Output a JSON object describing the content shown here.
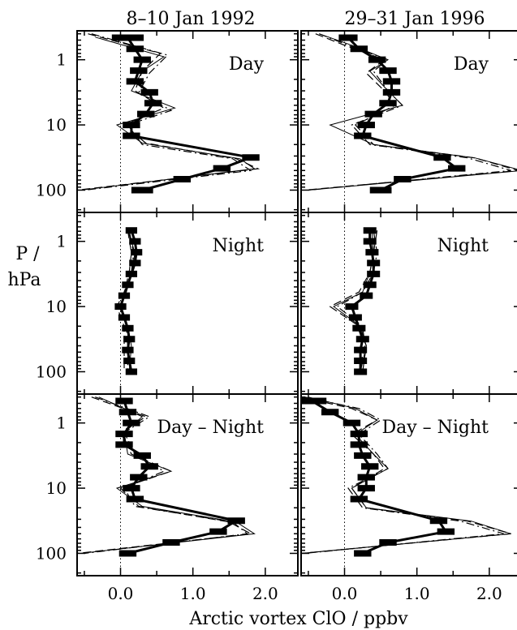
{
  "chart_data": {
    "type": "line",
    "layout": "3 rows x 2 columns of panels",
    "xlabel": "Arctic vortex ClO / ppbv",
    "ylabel": "P / hPa",
    "y_scale": "log",
    "y_reversed": true,
    "ylim": [
      220,
      0.36
    ],
    "xlim": [
      -0.6,
      2.45
    ],
    "xticks": [
      "0.0",
      "1.0",
      "2.0"
    ],
    "yticks": [
      "1",
      "10",
      "100"
    ],
    "columns": [
      "8–10 Jan 1992",
      "29–31 Jan 1996"
    ],
    "rows": [
      "Day",
      "Night",
      "Day – Night"
    ],
    "panels": [
      {
        "column": "8–10 Jan 1992",
        "row": "Day",
        "retrieval": {
          "pressure": [
            0.46,
            0.68,
            1.0,
            1.47,
            2.15,
            3.16,
            4.64,
            6.81,
            10,
            14.7,
            31.6,
            46.4,
            68.1,
            100
          ],
          "clo": [
            0.1,
            0.2,
            0.3,
            0.25,
            0.2,
            0.4,
            0.45,
            0.35,
            0.15,
            0.15,
            1.8,
            1.4,
            0.85,
            0.3
          ],
          "error": [
            0.22,
            0.12,
            0.12,
            0.12,
            0.12,
            0.12,
            0.12,
            0.12,
            0.12,
            0.12,
            0.12,
            0.12,
            0.12,
            0.15
          ]
        },
        "model_lines": [
          {
            "style": "dashed",
            "pressure": [
              0.4,
              0.8,
              1.5,
              3,
              5.5,
              10,
              19,
              33,
              47,
              100
            ],
            "clo": [
              -0.45,
              0.55,
              0.3,
              0.2,
              0.6,
              0.05,
              0.35,
              1.6,
              1.9,
              -0.6
            ]
          },
          {
            "style": "dash-dot",
            "pressure": [
              0.4,
              0.85,
              1.6,
              3.2,
              6,
              10,
              20,
              33,
              50,
              100
            ],
            "clo": [
              -0.4,
              0.65,
              0.4,
              0.25,
              0.7,
              0.1,
              0.3,
              1.55,
              1.8,
              -0.5
            ]
          },
          {
            "style": "solid",
            "pressure": [
              0.45,
              0.9,
              1.5,
              3,
              5.5,
              10,
              19,
              33,
              47,
              100
            ],
            "clo": [
              -0.35,
              0.6,
              0.3,
              0.15,
              0.75,
              -0.05,
              0.3,
              1.65,
              1.85,
              -0.55
            ]
          }
        ]
      },
      {
        "column": "29–31 Jan 1996",
        "row": "Day",
        "retrieval": {
          "pressure": [
            0.46,
            0.68,
            1.0,
            1.47,
            2.15,
            3.16,
            4.64,
            6.81,
            10,
            14.7,
            31.6,
            46.4,
            68.1,
            100
          ],
          "clo": [
            0.05,
            0.2,
            0.45,
            0.6,
            0.65,
            0.65,
            0.6,
            0.4,
            0.3,
            0.25,
            1.35,
            1.55,
            0.8,
            0.5
          ],
          "error": [
            0.13,
            0.12,
            0.12,
            0.12,
            0.12,
            0.12,
            0.12,
            0.12,
            0.12,
            0.12,
            0.12,
            0.12,
            0.12,
            0.15
          ]
        },
        "model_lines": [
          {
            "style": "dashed",
            "pressure": [
              0.4,
              0.6,
              1.0,
              1.6,
              3,
              5,
              10,
              20,
              32,
              50,
              100
            ],
            "clo": [
              -0.4,
              0.0,
              0.55,
              0.3,
              0.55,
              0.7,
              0.15,
              0.4,
              1.8,
              2.4,
              -0.55
            ]
          },
          {
            "style": "dash-dot",
            "pressure": [
              0.4,
              0.6,
              1.0,
              1.5,
              3,
              5,
              10,
              20,
              32,
              50,
              100
            ],
            "clo": [
              -0.35,
              0.05,
              0.6,
              0.4,
              0.6,
              0.8,
              0.1,
              0.35,
              1.7,
              2.3,
              -0.5
            ]
          },
          {
            "style": "solid",
            "pressure": [
              0.4,
              0.6,
              1.0,
              1.5,
              3,
              5,
              10,
              20,
              32,
              50,
              100
            ],
            "clo": [
              -0.35,
              0.1,
              0.6,
              0.35,
              0.6,
              0.8,
              -0.2,
              0.4,
              1.8,
              2.45,
              -0.5
            ]
          }
        ]
      },
      {
        "column": "8–10 Jan 1992",
        "row": "Night",
        "retrieval": {
          "pressure": [
            0.68,
            1.0,
            1.47,
            2.15,
            3.16,
            4.64,
            6.81,
            10,
            14.7,
            21.5,
            31.6,
            46.4,
            68.1,
            100
          ],
          "clo": [
            0.15,
            0.2,
            0.22,
            0.2,
            0.15,
            0.1,
            0.05,
            0.0,
            0.05,
            0.1,
            0.12,
            0.1,
            0.12,
            0.15
          ],
          "error": [
            0.08,
            0.08,
            0.08,
            0.08,
            0.08,
            0.08,
            0.08,
            0.08,
            0.08,
            0.08,
            0.08,
            0.08,
            0.08,
            0.08
          ]
        },
        "model_lines": [
          {
            "style": "dashed",
            "pressure": [
              0.68,
              1.5,
              3,
              6,
              10,
              20,
              40,
              100
            ],
            "clo": [
              0.1,
              0.15,
              0.12,
              0.05,
              -0.05,
              0.05,
              0.05,
              0.05
            ]
          },
          {
            "style": "dash-dot",
            "pressure": [
              0.68,
              1.5,
              3,
              6,
              10,
              20,
              40,
              100
            ],
            "clo": [
              0.12,
              0.18,
              0.15,
              0.05,
              0.0,
              0.08,
              0.1,
              0.1
            ]
          },
          {
            "style": "solid",
            "pressure": [
              0.68,
              1.5,
              3,
              6,
              10,
              20,
              40,
              100
            ],
            "clo": [
              0.1,
              0.2,
              0.15,
              0.08,
              -0.02,
              0.1,
              0.15,
              0.12
            ]
          }
        ]
      },
      {
        "column": "29–31 Jan 1996",
        "row": "Night",
        "retrieval": {
          "pressure": [
            0.68,
            1.0,
            1.47,
            2.15,
            3.16,
            4.64,
            6.81,
            10,
            14.7,
            21.5,
            31.6,
            46.4,
            68.1,
            100
          ],
          "clo": [
            0.35,
            0.35,
            0.38,
            0.4,
            0.4,
            0.35,
            0.3,
            0.1,
            0.15,
            0.2,
            0.25,
            0.22,
            0.22,
            0.22
          ],
          "error": [
            0.09,
            0.09,
            0.09,
            0.09,
            0.09,
            0.09,
            0.09,
            0.09,
            0.09,
            0.09,
            0.09,
            0.09,
            0.09,
            0.09
          ]
        },
        "model_lines": [
          {
            "style": "dashed",
            "pressure": [
              0.68,
              1.5,
              3,
              6,
              10,
              20,
              40,
              100
            ],
            "clo": [
              0.45,
              0.4,
              0.35,
              0.2,
              -0.2,
              0.2,
              0.3,
              0.25
            ]
          },
          {
            "style": "dash-dot",
            "pressure": [
              0.68,
              1.5,
              3,
              6,
              10,
              20,
              40,
              100
            ],
            "clo": [
              0.4,
              0.45,
              0.4,
              0.25,
              -0.1,
              0.25,
              0.28,
              0.2
            ]
          },
          {
            "style": "solid",
            "pressure": [
              0.68,
              1.5,
              3,
              6,
              10,
              20,
              40,
              100
            ],
            "clo": [
              0.38,
              0.4,
              0.35,
              0.25,
              -0.15,
              0.22,
              0.3,
              0.22
            ]
          }
        ]
      },
      {
        "column": "8–10 Jan 1992",
        "row": "Day – Night",
        "retrieval": {
          "pressure": [
            0.46,
            0.68,
            1.0,
            1.47,
            2.15,
            3.16,
            4.64,
            6.81,
            10,
            14.7,
            31.6,
            46.4,
            68.1,
            100
          ],
          "clo": [
            0.05,
            0.1,
            0.15,
            0.05,
            0.05,
            0.3,
            0.4,
            0.25,
            0.15,
            0.2,
            1.6,
            1.35,
            0.7,
            0.1
          ],
          "error": [
            0.12,
            0.12,
            0.12,
            0.12,
            0.12,
            0.12,
            0.12,
            0.12,
            0.12,
            0.12,
            0.12,
            0.12,
            0.12,
            0.12
          ]
        },
        "model_lines": [
          {
            "style": "dashed",
            "pressure": [
              0.4,
              0.8,
              1.4,
              3,
              5.5,
              10,
              19,
              33,
              50,
              100
            ],
            "clo": [
              -0.4,
              0.35,
              0.0,
              0.15,
              0.7,
              0.0,
              0.25,
              1.5,
              1.8,
              -0.6
            ]
          },
          {
            "style": "dash-dot",
            "pressure": [
              0.4,
              0.8,
              1.4,
              3,
              5.5,
              10,
              19,
              33,
              50,
              100
            ],
            "clo": [
              -0.35,
              0.4,
              0.05,
              0.2,
              0.6,
              0.05,
              0.2,
              1.55,
              1.75,
              -0.5
            ]
          },
          {
            "style": "solid",
            "pressure": [
              0.4,
              0.8,
              1.4,
              3,
              5.5,
              10,
              19,
              33,
              50,
              100
            ],
            "clo": [
              -0.3,
              0.3,
              0.05,
              0.1,
              0.7,
              -0.05,
              0.3,
              1.6,
              1.85,
              -0.55
            ]
          }
        ]
      },
      {
        "column": "29–31 Jan 1996",
        "row": "Day – Night",
        "retrieval": {
          "pressure": [
            0.46,
            0.68,
            1.0,
            1.47,
            2.15,
            3.16,
            4.64,
            6.81,
            10,
            14.7,
            31.6,
            46.4,
            68.1,
            100
          ],
          "clo": [
            -0.45,
            -0.2,
            0.1,
            0.2,
            0.2,
            0.25,
            0.35,
            0.3,
            0.3,
            0.2,
            1.3,
            1.4,
            0.6,
            0.25
          ],
          "error": [
            0.2,
            0.12,
            0.12,
            0.12,
            0.12,
            0.12,
            0.12,
            0.12,
            0.12,
            0.12,
            0.12,
            0.12,
            0.12,
            0.12
          ]
        },
        "model_lines": [
          {
            "style": "dashed",
            "pressure": [
              0.4,
              0.6,
              0.9,
              1.5,
              3,
              5,
              10,
              20,
              32,
              50,
              100
            ],
            "clo": [
              -0.6,
              0.1,
              0.45,
              0.1,
              0.4,
              0.55,
              0.1,
              0.3,
              1.7,
              2.3,
              -0.6
            ]
          },
          {
            "style": "dash-dot",
            "pressure": [
              0.4,
              0.6,
              0.9,
              1.5,
              3,
              5,
              10,
              20,
              32,
              50,
              100
            ],
            "clo": [
              -0.55,
              0.2,
              0.5,
              0.2,
              0.45,
              0.6,
              0.05,
              0.25,
              1.6,
              2.2,
              -0.55
            ]
          },
          {
            "style": "solid",
            "pressure": [
              0.4,
              0.6,
              0.9,
              1.5,
              3,
              5,
              10,
              20,
              32,
              50,
              100
            ],
            "clo": [
              -0.5,
              0.15,
              0.45,
              0.15,
              0.4,
              0.6,
              0.1,
              0.3,
              1.75,
              2.3,
              -0.6
            ]
          }
        ]
      }
    ]
  }
}
